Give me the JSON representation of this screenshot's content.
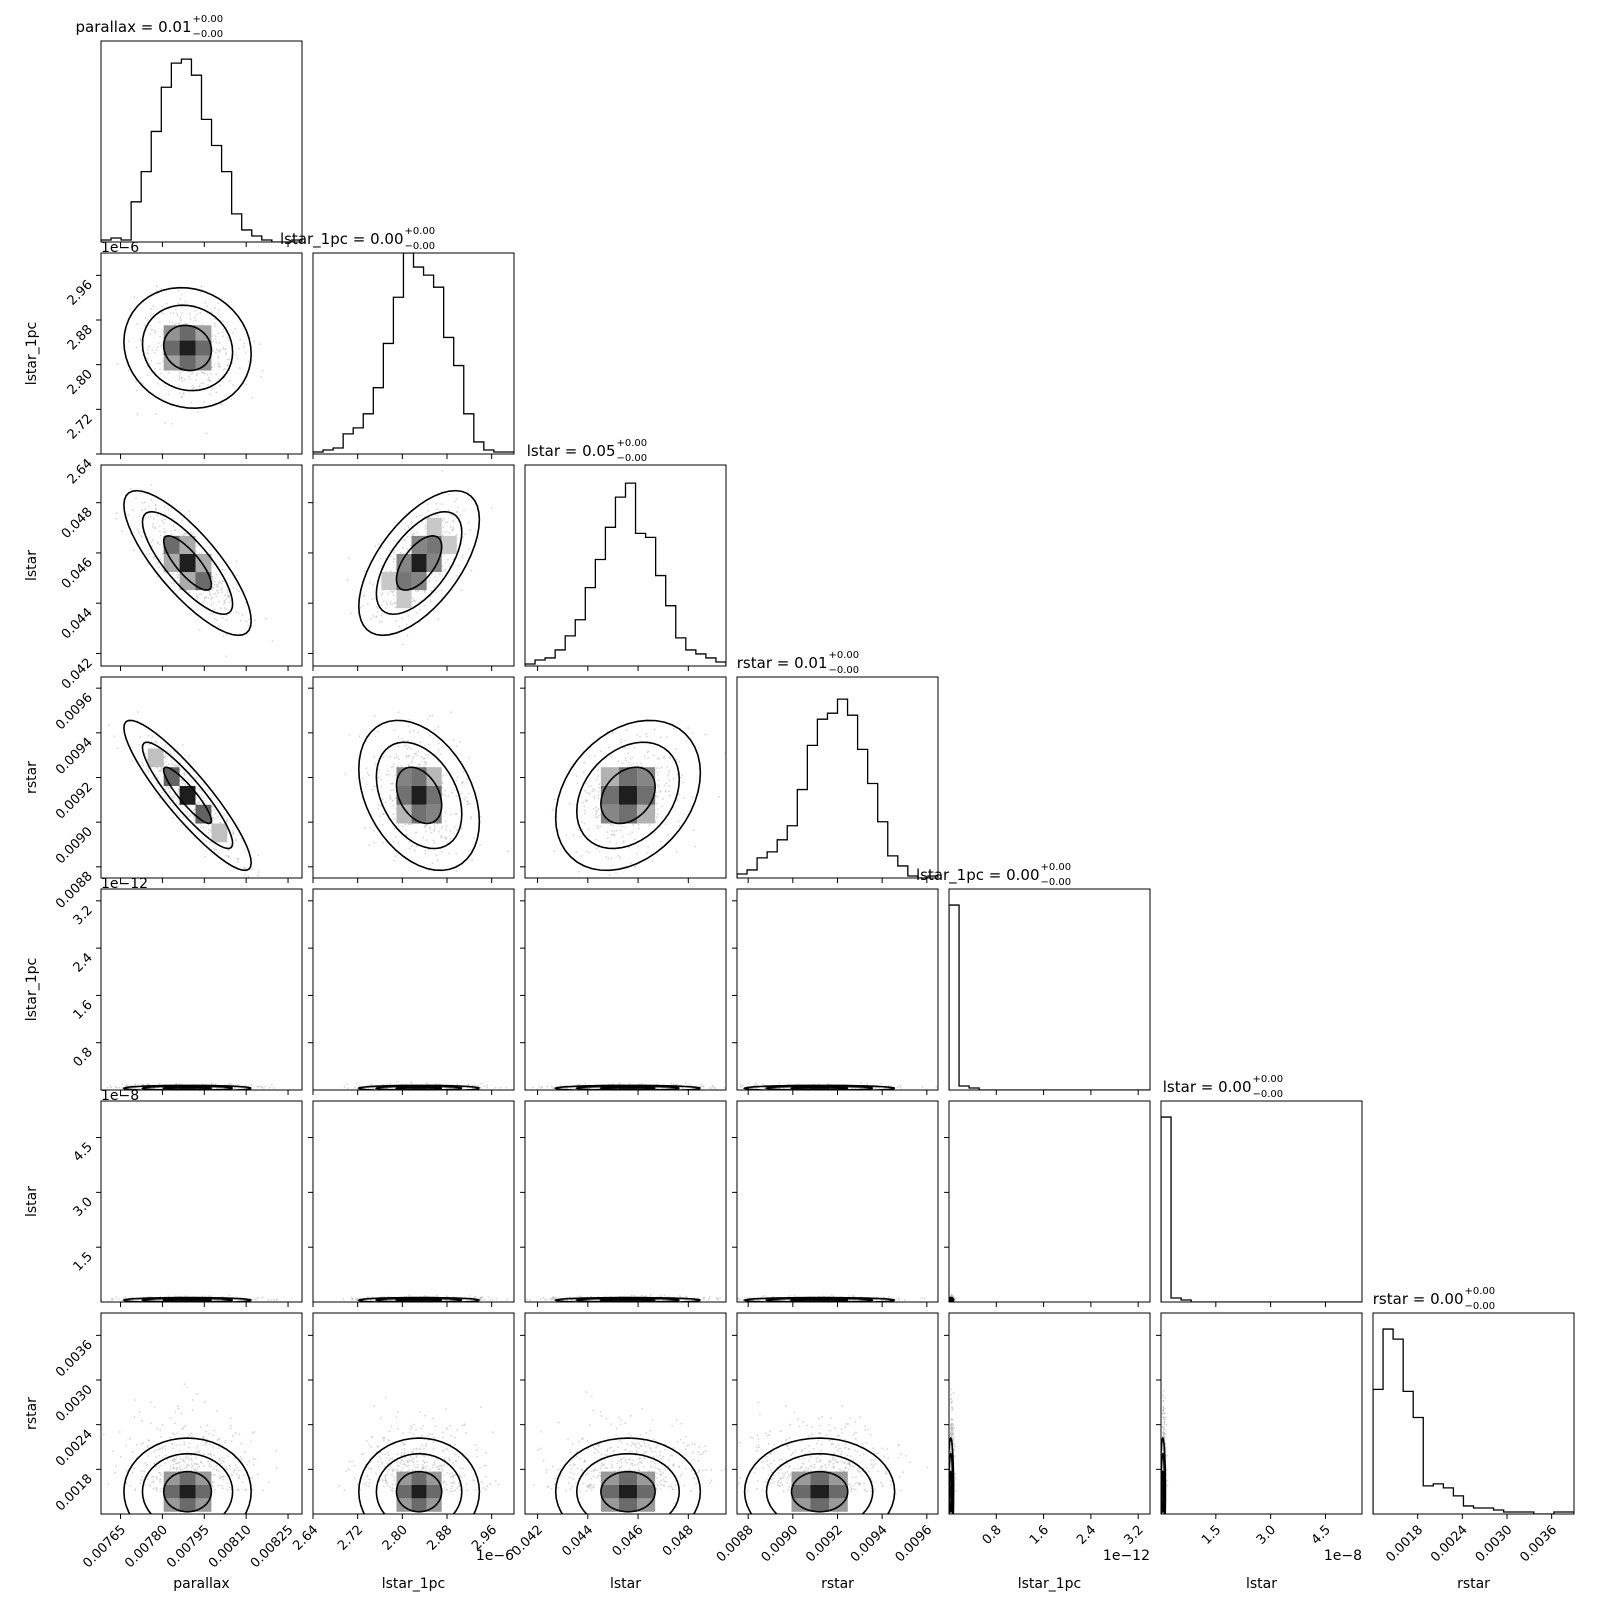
{
  "chart_data": {
    "type": "corner",
    "params": [
      {
        "name": "parallax",
        "xlabel": "parallax",
        "ylabel": "",
        "title_prefix": "parallax = 0.01",
        "title_sup": "+0.00",
        "title_sub": "−0.00",
        "range": [
          0.00758,
          0.0083
        ],
        "ticks": [
          0.00765,
          0.0078,
          0.00795,
          0.0081,
          0.00825
        ],
        "tick_labels": [
          "0.00765",
          "0.00780",
          "0.00795",
          "0.00810",
          "0.00825"
        ],
        "offset": "",
        "hist": [
          0.01,
          0.02,
          0.01,
          0.2,
          0.35,
          0.55,
          0.77,
          0.89,
          0.91,
          0.83,
          0.61,
          0.48,
          0.35,
          0.14,
          0.06,
          0.03,
          0.01,
          0.0,
          0.0,
          0.01
        ],
        "mean": 0.00789,
        "sd": 9.5e-05
      },
      {
        "name": "lstar_1pc",
        "xlabel": "lstar_1pc",
        "ylabel": "lstar_1pc",
        "title_prefix": "lstar_1pc = 0.00",
        "title_sup": "+0.00",
        "title_sub": "−0.00",
        "range": [
          2.64,
          3.0
        ],
        "ticks": [
          2.64,
          2.72,
          2.8,
          2.88,
          2.96
        ],
        "tick_labels": [
          "2.64",
          "2.72",
          "2.80",
          "2.88",
          "2.96"
        ],
        "offset": "1e−6",
        "hist": [
          0.01,
          0.02,
          0.03,
          0.1,
          0.13,
          0.2,
          0.33,
          0.55,
          0.78,
          1.0,
          0.93,
          0.89,
          0.83,
          0.58,
          0.44,
          0.2,
          0.06,
          0.02,
          0.01,
          0.01
        ],
        "mean": 2.83,
        "sd": 0.045
      },
      {
        "name": "lstar",
        "xlabel": "lstar",
        "ylabel": "lstar",
        "title_prefix": "lstar = 0.05",
        "title_sup": "+0.00",
        "title_sub": "−0.00",
        "range": [
          0.0415,
          0.0495
        ],
        "ticks": [
          0.042,
          0.044,
          0.046,
          0.048
        ],
        "tick_labels": [
          "0.042",
          "0.044",
          "0.046",
          "0.048"
        ],
        "offset": "",
        "hist": [
          0.01,
          0.03,
          0.04,
          0.08,
          0.15,
          0.23,
          0.39,
          0.53,
          0.69,
          0.84,
          0.91,
          0.66,
          0.64,
          0.45,
          0.3,
          0.14,
          0.08,
          0.06,
          0.04,
          0.02
        ],
        "mean": 0.0456,
        "sd": 0.0012
      },
      {
        "name": "rstar",
        "xlabel": "rstar",
        "ylabel": "rstar",
        "title_prefix": "rstar = 0.01",
        "title_sup": "+0.00",
        "title_sub": "−0.00",
        "range": [
          0.00875,
          0.00965
        ],
        "ticks": [
          0.0088,
          0.009,
          0.0092,
          0.0094,
          0.0096
        ],
        "tick_labels": [
          "0.0088",
          "0.0090",
          "0.0092",
          "0.0094",
          "0.0096"
        ],
        "offset": "",
        "hist": [
          0.02,
          0.04,
          0.1,
          0.13,
          0.19,
          0.26,
          0.44,
          0.66,
          0.79,
          0.82,
          0.89,
          0.81,
          0.64,
          0.47,
          0.28,
          0.11,
          0.06,
          0.01,
          0.0,
          0.01
        ],
        "mean": 0.00912,
        "sd": 0.00014
      },
      {
        "name": "lstar_1pc",
        "xlabel": "lstar_1pc",
        "ylabel": "lstar_1pc",
        "title_prefix": "lstar_1pc = 0.00",
        "title_sup": "+0.00",
        "title_sub": "−0.00",
        "range": [
          0.0,
          3.4
        ],
        "ticks": [
          0.8,
          1.6,
          2.4,
          3.2
        ],
        "tick_labels": [
          "0.8",
          "1.6",
          "2.4",
          "3.2"
        ],
        "offset": "1e−12",
        "hist": [
          0.92,
          0.02,
          0.01,
          0.0,
          0.0,
          0.0,
          0.0,
          0.0,
          0.0,
          0.0,
          0.0,
          0.0,
          0.0,
          0.0,
          0.0,
          0.0,
          0.0,
          0.0,
          0.0,
          0.0
        ],
        "mean": 0.03,
        "sd": 0.02
      },
      {
        "name": "lstar",
        "xlabel": "lstar",
        "ylabel": "lstar",
        "title_prefix": "lstar = 0.00",
        "title_sup": "+0.00",
        "title_sub": "−0.00",
        "range": [
          0.0,
          5.5
        ],
        "ticks": [
          1.5,
          3.0,
          4.5
        ],
        "tick_labels": [
          "1.5",
          "3.0",
          "4.5"
        ],
        "offset": "1e−8",
        "hist": [
          0.92,
          0.02,
          0.01,
          0.0,
          0.0,
          0.0,
          0.0,
          0.0,
          0.0,
          0.0,
          0.0,
          0.0,
          0.0,
          0.0,
          0.0,
          0.0,
          0.0,
          0.0,
          0.0,
          0.0
        ],
        "mean": 0.05,
        "sd": 0.03
      },
      {
        "name": "rstar",
        "xlabel": "rstar",
        "ylabel": "rstar",
        "title_prefix": "rstar = 0.00",
        "title_sup": "+0.00",
        "title_sub": "−0.00",
        "range": [
          0.0012,
          0.0039
        ],
        "ticks": [
          0.0018,
          0.0024,
          0.003,
          0.0036
        ],
        "tick_labels": [
          "0.0018",
          "0.0024",
          "0.0030",
          "0.0036"
        ],
        "offset": "",
        "hist": [
          0.62,
          0.92,
          0.87,
          0.61,
          0.48,
          0.14,
          0.15,
          0.13,
          0.09,
          0.04,
          0.03,
          0.03,
          0.02,
          0.01,
          0.01,
          0.01,
          0.0,
          0.0,
          0.01,
          0.01
        ],
        "mean": 0.0015,
        "sd": 0.0003
      }
    ],
    "correlations": {
      "1-0": -0.1,
      "2-0": -0.8,
      "2-1": 0.6,
      "3-0": -0.9,
      "3-1": -0.35,
      "3-2": 0.3
    }
  }
}
